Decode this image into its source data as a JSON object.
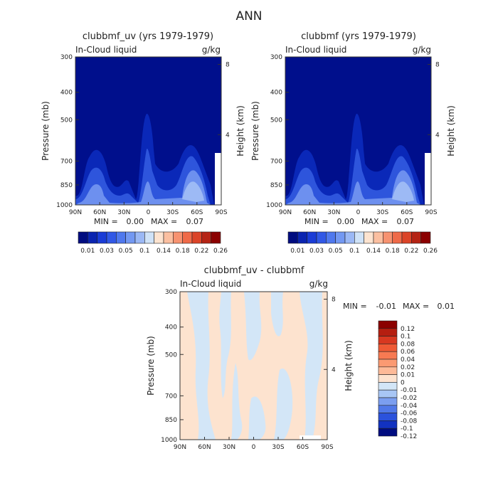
{
  "page_title": "ANN",
  "colors": {
    "deep_blue": "#000f8c",
    "mid_blue": "#1a3cd6",
    "light_blue": "#8fb0f5",
    "pale_blue": "#d3e6f7",
    "pale_peach": "#fde3cf",
    "dark_red": "#8b0000"
  },
  "chart_data": [
    {
      "type": "heatmap",
      "title": "clubbmf_uv (yrs 1979-1979)",
      "left_label": "In-Cloud liquid",
      "units": "g/kg",
      "xlabel": "",
      "ylabel": "Pressure (mb)",
      "y2label": "Height (km)",
      "x_ticks": [
        "90N",
        "60N",
        "30N",
        "0",
        "30S",
        "60S",
        "90S"
      ],
      "y_ticks": [
        "300",
        "400",
        "500",
        "700",
        "850",
        "1000"
      ],
      "y2_ticks": [
        "8",
        "4"
      ],
      "stats": {
        "min_label": "MIN =",
        "min": "0.00",
        "max_label": "MAX =",
        "max": "0.07"
      },
      "colorbar": {
        "orientation": "horizontal",
        "colors": [
          "#000c80",
          "#0a24b0",
          "#1a3cd6",
          "#3158e6",
          "#4f78ee",
          "#7398f2",
          "#9bb8f5",
          "#cfe2f7",
          "#fde3cf",
          "#fbbfa0",
          "#f79270",
          "#ef6a48",
          "#db4428",
          "#b52314",
          "#8b0000"
        ],
        "labels": [
          "0.01",
          "0.03",
          "0.05",
          "0.1",
          "0.14",
          "0.18",
          "0.22",
          "0.26"
        ]
      }
    },
    {
      "type": "heatmap",
      "title": "clubbmf (yrs 1979-1979)",
      "left_label": "In-Cloud liquid",
      "units": "g/kg",
      "xlabel": "",
      "ylabel": "Pressure (mb)",
      "y2label": "Height (km)",
      "x_ticks": [
        "90N",
        "60N",
        "30N",
        "0",
        "30S",
        "60S",
        "90S"
      ],
      "y_ticks": [
        "300",
        "400",
        "500",
        "700",
        "850",
        "1000"
      ],
      "y2_ticks": [
        "8",
        "4"
      ],
      "stats": {
        "min_label": "MIN =",
        "min": "0.00",
        "max_label": "MAX =",
        "max": "0.07"
      },
      "colorbar": {
        "orientation": "horizontal",
        "colors": [
          "#000c80",
          "#0a24b0",
          "#1a3cd6",
          "#3158e6",
          "#4f78ee",
          "#7398f2",
          "#9bb8f5",
          "#cfe2f7",
          "#fde3cf",
          "#fbbfa0",
          "#f79270",
          "#ef6a48",
          "#db4428",
          "#b52314",
          "#8b0000"
        ],
        "labels": [
          "0.01",
          "0.03",
          "0.05",
          "0.1",
          "0.14",
          "0.18",
          "0.22",
          "0.26"
        ]
      }
    },
    {
      "type": "heatmap",
      "title": "clubbmf_uv - clubbmf",
      "left_label": "In-Cloud liquid",
      "units": "g/kg",
      "xlabel": "",
      "ylabel": "Pressure (mb)",
      "y2label": "Height (km)",
      "x_ticks": [
        "90N",
        "60N",
        "30N",
        "0",
        "30S",
        "60S",
        "90S"
      ],
      "y_ticks": [
        "300",
        "400",
        "500",
        "700",
        "850",
        "1000"
      ],
      "y2_ticks": [
        "8",
        "4"
      ],
      "stats": {
        "min_label": "MIN =",
        "min": "-0.01",
        "max_label": "MAX =",
        "max": "0.01"
      },
      "colorbar": {
        "orientation": "vertical",
        "colors": [
          "#8b0000",
          "#b51e10",
          "#d83820",
          "#ef5a35",
          "#f77a52",
          "#fb9a72",
          "#fdba98",
          "#fde3cf",
          "#d3e6f7",
          "#a8c6f5",
          "#7b9ef0",
          "#5078e8",
          "#2b52dc",
          "#1232c0",
          "#000c80"
        ],
        "labels": [
          "0.12",
          "0.1",
          "0.08",
          "0.06",
          "0.04",
          "0.02",
          "0.01",
          "0",
          "-0.01",
          "-0.02",
          "-0.04",
          "-0.06",
          "-0.08",
          "-0.1",
          "-0.12"
        ]
      }
    }
  ]
}
